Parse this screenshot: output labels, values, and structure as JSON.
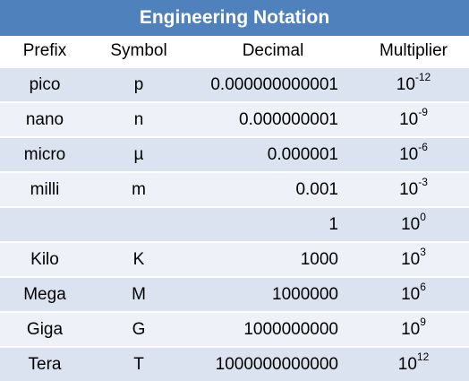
{
  "title": "Engineering Notation",
  "headers": [
    "Prefix",
    "Symbol",
    "Decimal",
    "Multiplier"
  ],
  "rows": [
    {
      "prefix": "pico",
      "symbol": "p",
      "decimal": "0.000000000001",
      "base": "10",
      "exp": "-12"
    },
    {
      "prefix": "nano",
      "symbol": "n",
      "decimal": "0.000000001",
      "base": "10",
      "exp": "-9"
    },
    {
      "prefix": "micro",
      "symbol": "µ",
      "decimal": "0.000001",
      "base": "10",
      "exp": "-6"
    },
    {
      "prefix": "milli",
      "symbol": "m",
      "decimal": "0.001",
      "base": "10",
      "exp": "-3"
    },
    {
      "prefix": "",
      "symbol": "",
      "decimal": "1",
      "base": "10",
      "exp": "0"
    },
    {
      "prefix": "Kilo",
      "symbol": "K",
      "decimal": "1000",
      "base": "10",
      "exp": "3"
    },
    {
      "prefix": "Mega",
      "symbol": "M",
      "decimal": "1000000",
      "base": "10",
      "exp": "6"
    },
    {
      "prefix": "Giga",
      "symbol": "G",
      "decimal": "1000000000",
      "base": "10",
      "exp": "9"
    },
    {
      "prefix": "Tera",
      "symbol": "T",
      "decimal": "1000000000000",
      "base": "10",
      "exp": "12"
    }
  ],
  "colors": {
    "header": "#4f81bd",
    "row_odd": "#dbe3f0",
    "row_even": "#eef1f8"
  }
}
